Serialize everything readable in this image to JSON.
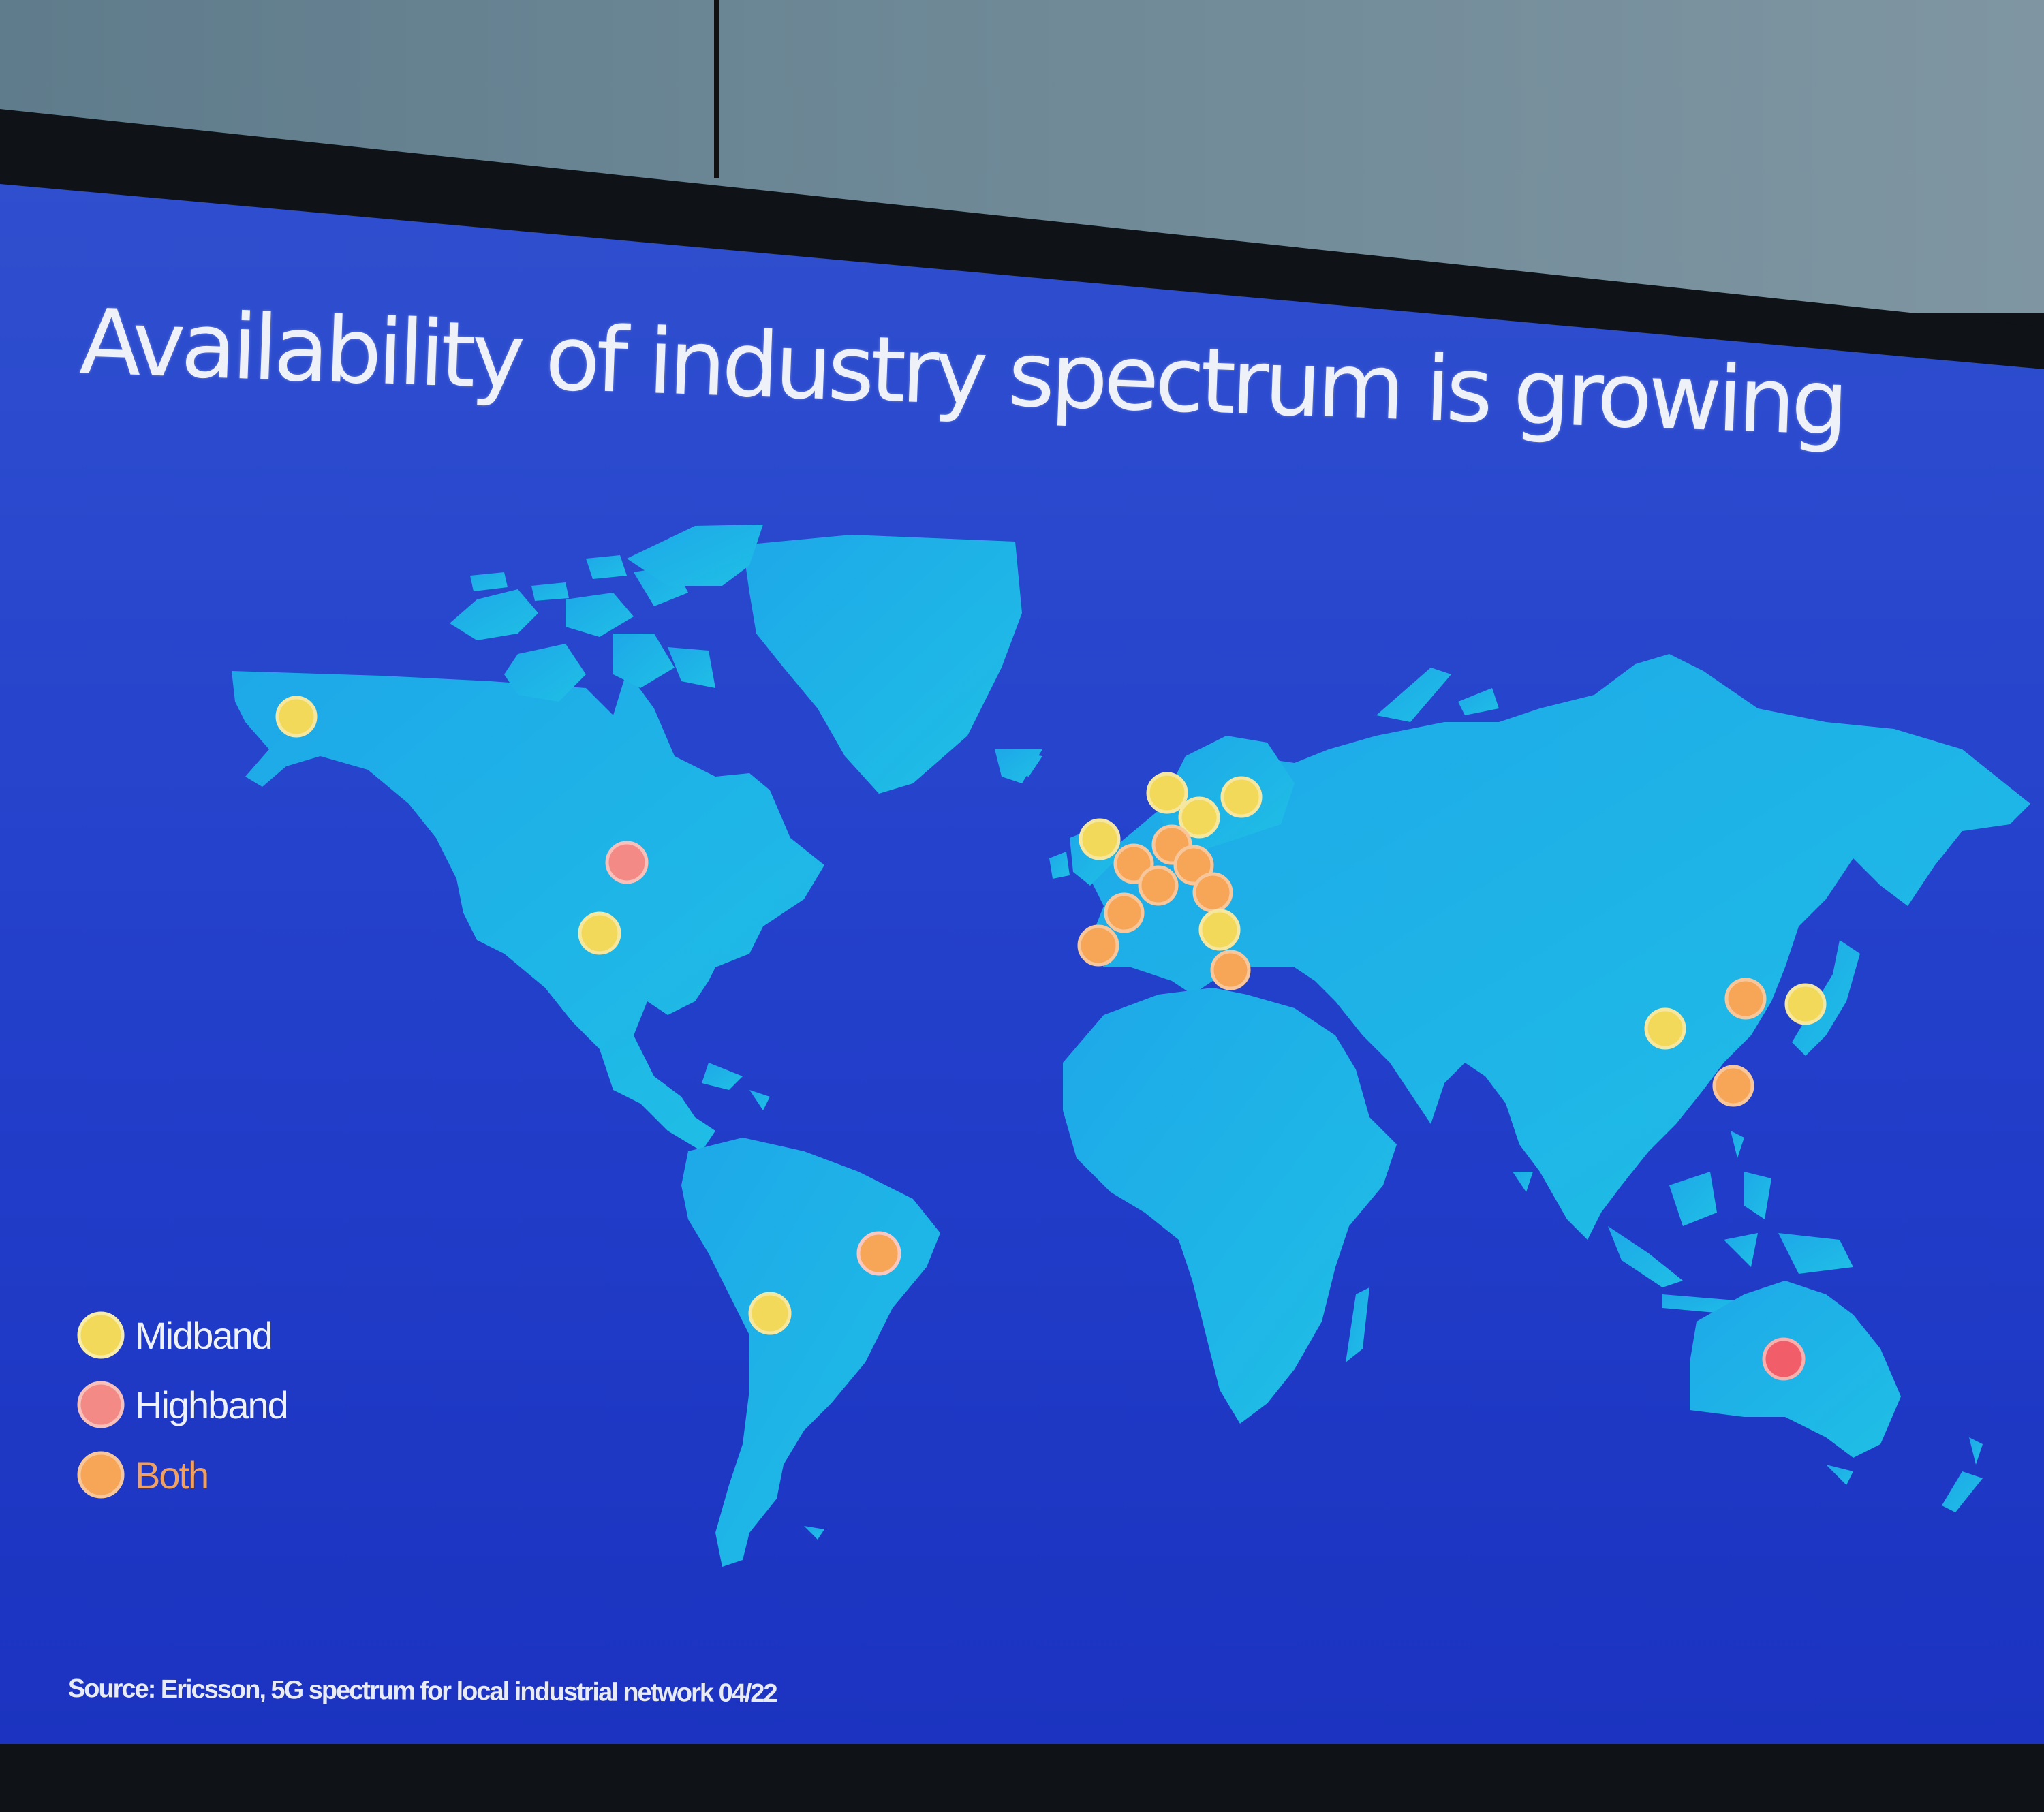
{
  "slide": {
    "title": "Availability of industry spectrum is growing",
    "source": "Source:  Ericsson, 5G spectrum for local industrial network 04/22"
  },
  "legend": [
    {
      "label": "Midband",
      "color": "#f2d95a"
    },
    {
      "label": "Highband",
      "color": "#f48a86"
    },
    {
      "label": "Both",
      "color": "#f7a556"
    }
  ],
  "colors": {
    "slide_background": "#2342c8",
    "land": "#1fb5ea",
    "frame": "#0f1318",
    "wall": "#6c8696"
  }
}
